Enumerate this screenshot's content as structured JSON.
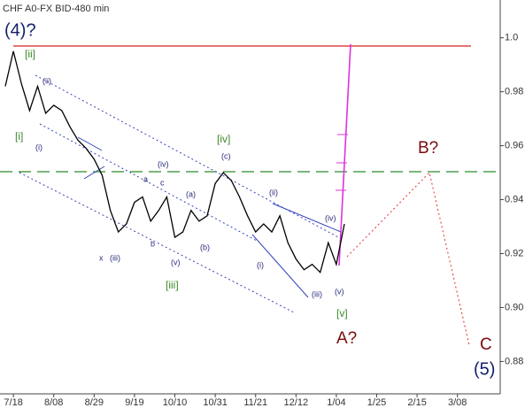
{
  "chart_data": {
    "type": "line",
    "title": "CHF A0-FX BID-480 min",
    "categories": [
      null,
      "7/18",
      null,
      null,
      null,
      null,
      "8/08",
      null,
      null,
      null,
      null,
      "8/29",
      null,
      null,
      null,
      null,
      "9/19",
      null,
      null,
      null,
      null,
      "10/10",
      null,
      null,
      null,
      null,
      "10/31",
      null,
      null,
      null,
      null,
      "11/21",
      null,
      null,
      null,
      null,
      "12/12",
      null,
      null,
      null,
      null,
      "1/04",
      null,
      null,
      null,
      null,
      "1/25",
      null,
      null,
      null,
      null,
      "2/15",
      null,
      null,
      null,
      null,
      "3/08",
      null,
      null
    ],
    "series": [
      {
        "name": "CHF A0-FX",
        "color": "#000000",
        "values": [
          0.982,
          0.995,
          0.983,
          0.973,
          0.982,
          0.972,
          0.975,
          0.973,
          0.967,
          0.962,
          0.959,
          0.955,
          0.949,
          0.936,
          0.928,
          0.931,
          0.939,
          0.941,
          0.932,
          0.936,
          0.941,
          0.926,
          0.928,
          0.936,
          0.932,
          0.934,
          0.946,
          0.95,
          0.947,
          0.941,
          0.934,
          0.928,
          0.931,
          0.928,
          0.934,
          0.924,
          0.918,
          0.914,
          0.916,
          0.913,
          0.924,
          0.916,
          0.931,
          null,
          null,
          null,
          null,
          null,
          null,
          null,
          null,
          null,
          null,
          null,
          null,
          null,
          null,
          null,
          null
        ]
      }
    ],
    "ylim": [
      0.868,
      1.014
    ],
    "yticks": [
      {
        "value": 0.88,
        "label": "0.88"
      },
      {
        "value": 0.9,
        "label": "0.90"
      },
      0.92,
      0.94,
      0.96,
      0.98,
      {
        "value": 1,
        "label": "1.0"
      }
    ],
    "annotations": [
      "(4)?",
      "[ii]",
      "(ii)",
      "[i]",
      "(i)",
      "(iv)",
      "a",
      "c",
      "[iv]",
      "(c)",
      "(a)",
      "(ii)",
      "b",
      "(b)",
      "(iv)",
      "x",
      "(iii)",
      "(v)",
      "[iii]",
      "(i)",
      "(iii)",
      "(v)",
      "[v]",
      "A?",
      "B?",
      "C",
      "(5)"
    ]
  }
}
